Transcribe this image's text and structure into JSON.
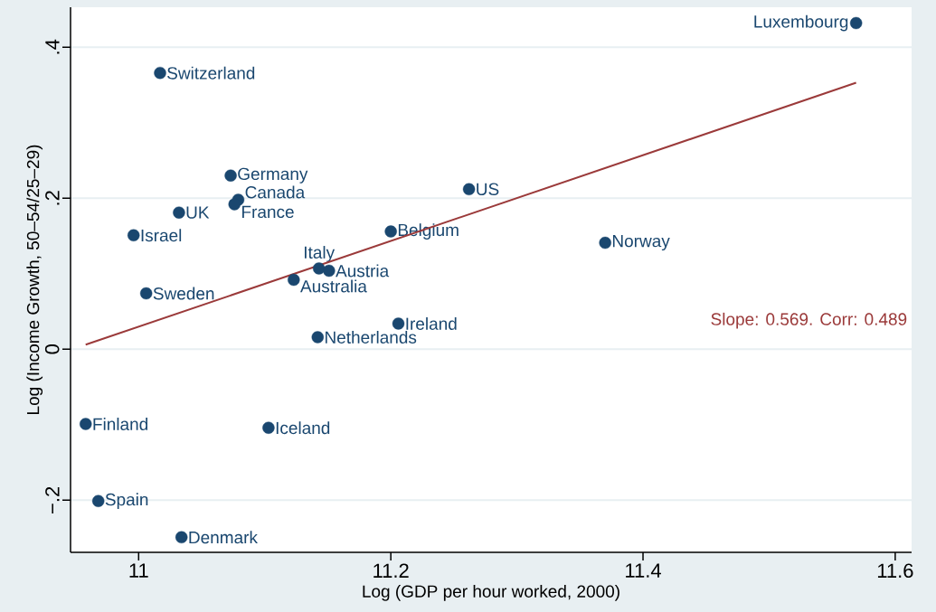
{
  "chart_data": {
    "type": "scatter",
    "xlabel": "Log (GDP per hour worked, 2000)",
    "ylabel": "Log (Income Growth, 50–54/25–29)",
    "xlim": [
      10.946,
      11.613
    ],
    "ylim": [
      -0.269,
      0.453
    ],
    "xticks": [
      11,
      11.2,
      11.4,
      11.6
    ],
    "yticks": [
      {
        "value": -0.2,
        "label": "−.2"
      },
      {
        "value": 0,
        "label": "0"
      },
      {
        "value": 0.2,
        "label": ".2"
      },
      {
        "value": 0.4,
        "label": ".4"
      }
    ],
    "grid": "y",
    "annotations": [
      "Slope: 0.569.  Corr: 0.489"
    ],
    "series": [
      {
        "name": "Luxembourg",
        "marker": "circle",
        "color": "#1a476f",
        "x": [
          11.569
        ],
        "values": [
          0.432
        ]
      },
      {
        "name": "Switzerland",
        "marker": "circle",
        "color": "#1a476f",
        "x": [
          11.017
        ],
        "values": [
          0.366
        ]
      },
      {
        "name": "Germany",
        "marker": "circle",
        "color": "#1a476f",
        "x": [
          11.073
        ],
        "values": [
          0.23
        ]
      },
      {
        "name": "Canada",
        "marker": "circle",
        "color": "#1a476f",
        "x": [
          11.079
        ],
        "values": [
          0.198
        ]
      },
      {
        "name": "France",
        "marker": "circle",
        "color": "#1a476f",
        "x": [
          11.076
        ],
        "values": [
          0.192
        ]
      },
      {
        "name": "UK",
        "marker": "circle",
        "color": "#1a476f",
        "x": [
          11.032
        ],
        "values": [
          0.181
        ]
      },
      {
        "name": "Israel",
        "marker": "circle",
        "color": "#1a476f",
        "x": [
          10.996
        ],
        "values": [
          0.151
        ]
      },
      {
        "name": "US",
        "marker": "circle",
        "color": "#1a476f",
        "x": [
          11.262
        ],
        "values": [
          0.212
        ]
      },
      {
        "name": "Belgium",
        "marker": "circle",
        "color": "#1a476f",
        "x": [
          11.2
        ],
        "values": [
          0.156
        ]
      },
      {
        "name": "Norway",
        "marker": "circle",
        "color": "#1a476f",
        "x": [
          11.37
        ],
        "values": [
          0.141
        ]
      },
      {
        "name": "Italy",
        "marker": "circle",
        "color": "#1a476f",
        "x": [
          11.143
        ],
        "values": [
          0.107
        ]
      },
      {
        "name": "Austria",
        "marker": "circle",
        "color": "#1a476f",
        "x": [
          11.151
        ],
        "values": [
          0.104
        ]
      },
      {
        "name": "Australia",
        "marker": "circle",
        "color": "#1a476f",
        "x": [
          11.123
        ],
        "values": [
          0.092
        ]
      },
      {
        "name": "Sweden",
        "marker": "circle",
        "color": "#1a476f",
        "x": [
          11.006
        ],
        "values": [
          0.074
        ]
      },
      {
        "name": "Ireland",
        "marker": "circle",
        "color": "#1a476f",
        "x": [
          11.206
        ],
        "values": [
          0.034
        ]
      },
      {
        "name": "Netherlands",
        "marker": "circle",
        "color": "#1a476f",
        "x": [
          11.142
        ],
        "values": [
          0.016
        ]
      },
      {
        "name": "Finland",
        "marker": "circle",
        "color": "#1a476f",
        "x": [
          10.958
        ],
        "values": [
          -0.099
        ]
      },
      {
        "name": "Iceland",
        "marker": "circle",
        "color": "#1a476f",
        "x": [
          11.103
        ],
        "values": [
          -0.104
        ]
      },
      {
        "name": "Spain",
        "marker": "circle",
        "color": "#1a476f",
        "x": [
          10.968
        ],
        "values": [
          -0.201
        ]
      },
      {
        "name": "Denmark",
        "marker": "circle",
        "color": "#1a476f",
        "x": [
          11.034
        ],
        "values": [
          -0.249
        ]
      },
      {
        "type": "line",
        "color": "#9b3a3a",
        "x": [
          10.958,
          11.569
        ],
        "values": [
          0.006,
          0.353
        ]
      }
    ]
  }
}
